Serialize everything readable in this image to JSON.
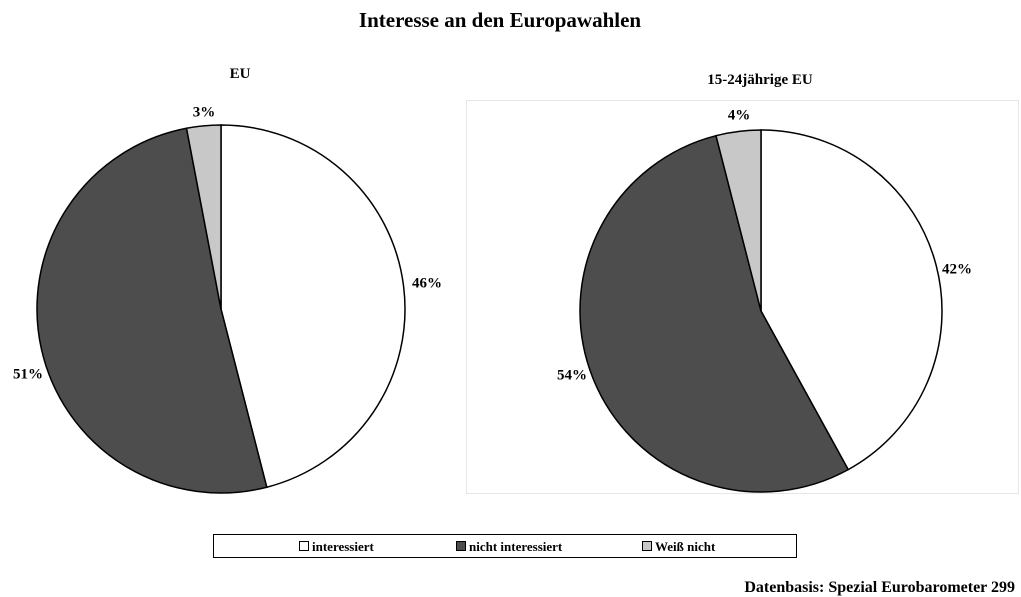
{
  "title": "Interesse an den Europawahlen",
  "source": "Datenbasis: Spezial Eurobarometer 299",
  "legend": [
    "interessiert",
    "nicht interessiert",
    "Weiß nicht"
  ],
  "colors": {
    "interessiert": "#ffffff",
    "nicht interessiert": "#4d4d4d",
    "Weiß nicht": "#c8c8c8"
  },
  "chart_data": [
    {
      "type": "pie",
      "title": "EU",
      "categories": [
        "interessiert",
        "nicht interessiert",
        "Weiß nicht"
      ],
      "values": [
        46,
        51,
        3
      ],
      "labels": [
        "46%",
        "51%",
        "3%"
      ]
    },
    {
      "type": "pie",
      "title": "15-24jährige EU",
      "categories": [
        "interessiert",
        "nicht interessiert",
        "Weiß nicht"
      ],
      "values": [
        42,
        54,
        4
      ],
      "labels": [
        "42%",
        "54%",
        "4%"
      ]
    }
  ]
}
